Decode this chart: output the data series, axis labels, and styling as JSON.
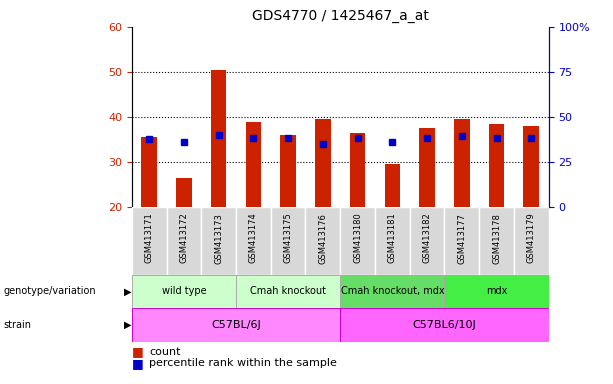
{
  "title": "GDS4770 / 1425467_a_at",
  "samples": [
    "GSM413171",
    "GSM413172",
    "GSM413173",
    "GSM413174",
    "GSM413175",
    "GSM413176",
    "GSM413180",
    "GSM413181",
    "GSM413182",
    "GSM413177",
    "GSM413178",
    "GSM413179"
  ],
  "counts": [
    35.5,
    26.5,
    50.5,
    39.0,
    36.0,
    39.5,
    36.5,
    29.5,
    37.5,
    39.5,
    38.5,
    38.0
  ],
  "percentiles": [
    38.0,
    36.0,
    40.0,
    38.5,
    38.5,
    35.0,
    38.5,
    36.0,
    38.5,
    39.5,
    38.5,
    38.5
  ],
  "count_base": 20,
  "ylim_left": [
    20,
    60
  ],
  "ylim_right": [
    0,
    100
  ],
  "yticks_left": [
    20,
    30,
    40,
    50,
    60
  ],
  "yticks_right": [
    0,
    25,
    50,
    75,
    100
  ],
  "ytick_labels_right": [
    "0",
    "25",
    "50",
    "75",
    "100%"
  ],
  "bar_color": "#cc2200",
  "percentile_color": "#0000cc",
  "groups": [
    {
      "label": "wild type",
      "start": 0,
      "end": 3,
      "color": "#ccffcc"
    },
    {
      "label": "Cmah knockout",
      "start": 3,
      "end": 6,
      "color": "#ccffcc"
    },
    {
      "label": "Cmah knockout, mdx",
      "start": 6,
      "end": 9,
      "color": "#66dd66"
    },
    {
      "label": "mdx",
      "start": 9,
      "end": 12,
      "color": "#44ee44"
    }
  ],
  "strains": [
    {
      "label": "C57BL/6J",
      "start": 0,
      "end": 6,
      "color": "#ff88ff"
    },
    {
      "label": "C57BL6/10J",
      "start": 6,
      "end": 12,
      "color": "#ff66ff"
    }
  ],
  "genotype_label": "genotype/variation",
  "strain_label": "strain",
  "legend_count": "count",
  "legend_percentile": "percentile rank within the sample",
  "tick_color_left": "#cc2200",
  "tick_color_right": "#0000cc",
  "sample_bg": "#d8d8d8",
  "sample_edge": "#ffffff"
}
